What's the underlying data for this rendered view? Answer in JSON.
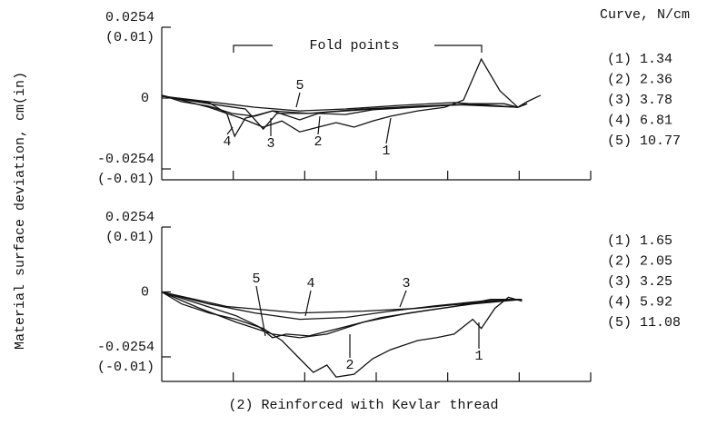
{
  "ylabel": "Material surface deviation, cm(in)",
  "legend_title": "Curve, N/cm",
  "caption": "(2) Reinforced with Kevlar thread",
  "chart_data": [
    {
      "type": "line",
      "annotation": "Fold points",
      "color": "#111111",
      "xlim": [
        0,
        6
      ],
      "xticks": [
        1,
        2,
        3,
        4,
        5,
        6
      ],
      "ylim": [
        -0.0293,
        0.0254
      ],
      "yticks": [
        {
          "value": 0.0254,
          "label": [
            "0.0254",
            "(0.01)"
          ]
        },
        0,
        {
          "value": -0.0254,
          "label": [
            "-0.0254",
            "(-0.01)"
          ]
        }
      ],
      "series": [
        {
          "name": "(1) 1.34",
          "label": "1",
          "x": [
            0,
            0.28,
            0.66,
            0.91,
            1.11,
            1.42,
            1.68,
            1.93,
            2.19,
            2.44,
            2.69,
            2.95,
            3.2,
            3.58,
            3.96,
            4.22,
            4.47,
            4.73,
            4.98,
            5.11,
            5.3
          ],
          "values": [
            0.001,
            -0.0007,
            -0.0033,
            -0.0055,
            -0.0072,
            -0.0104,
            -0.0082,
            -0.0121,
            -0.0104,
            -0.0088,
            -0.0104,
            -0.0082,
            -0.0065,
            -0.0046,
            -0.0033,
            -0.0007,
            0.014,
            0.0026,
            -0.0033,
            -0.0013,
            0.001
          ]
        },
        {
          "name": "(2) 2.36",
          "label": "2",
          "x": [
            0,
            0.28,
            0.66,
            0.98,
            1.3,
            1.55,
            1.93,
            2.19,
            2.57,
            2.95,
            3.33,
            3.84,
            4.35,
            4.79,
            4.98,
            5.11
          ],
          "values": [
            0.001,
            -0.0013,
            -0.0029,
            -0.0055,
            -0.0065,
            -0.0046,
            -0.0078,
            -0.0055,
            -0.0059,
            -0.0042,
            -0.0036,
            -0.0029,
            -0.002,
            -0.002,
            -0.0033,
            -0.002
          ]
        },
        {
          "name": "(3) 3.78",
          "label": "3",
          "x": [
            0,
            0.66,
            1.17,
            1.42,
            1.61,
            2.06,
            2.82,
            3.58,
            4.35,
            4.98,
            5.11
          ],
          "values": [
            0.0007,
            -0.002,
            -0.0039,
            -0.0111,
            -0.0055,
            -0.0055,
            -0.0039,
            -0.0029,
            -0.0023,
            -0.0033,
            -0.002
          ]
        },
        {
          "name": "(4) 6.81",
          "label": "4",
          "x": [
            0,
            0.66,
            0.91,
            1.02,
            1.17,
            1.55,
            2.06,
            2.57,
            3.33,
            4.09,
            4.98,
            5.11
          ],
          "values": [
            0.0007,
            -0.0016,
            -0.0055,
            -0.0137,
            -0.0072,
            -0.0046,
            -0.0055,
            -0.0046,
            -0.0033,
            -0.0023,
            -0.0033,
            -0.002
          ]
        },
        {
          "name": "(5) 10.77",
          "label": "5",
          "x": [
            0,
            0.66,
            1.3,
            1.93,
            2.57,
            3.33,
            4.09,
            4.98,
            5.11
          ],
          "values": [
            0.0007,
            -0.0013,
            -0.0033,
            -0.0046,
            -0.0039,
            -0.0026,
            -0.0016,
            -0.0033,
            -0.002
          ]
        }
      ]
    },
    {
      "type": "line",
      "color": "#111111",
      "xlim": [
        0,
        6
      ],
      "xticks": [
        1,
        2,
        3,
        4,
        5,
        6
      ],
      "ylim": [
        -0.035,
        0.0254
      ],
      "yticks": [
        {
          "value": 0.0254,
          "label": [
            "0.0254",
            "(0.01)"
          ]
        },
        0,
        {
          "value": -0.0254,
          "label": [
            "-0.0254",
            "(-0.01)"
          ]
        }
      ],
      "series": [
        {
          "name": "(1) 1.65",
          "label": "1",
          "x": [
            0,
            0.28,
            0.66,
            1.04,
            1.42,
            1.68,
            1.93,
            2.12,
            2.31,
            2.44,
            2.69,
            2.95,
            3.2,
            3.58,
            3.84,
            4.09,
            4.35,
            4.47,
            4.66,
            4.85,
            5.04
          ],
          "values": [
            0,
            -0.0047,
            -0.0082,
            -0.0107,
            -0.0143,
            -0.019,
            -0.0261,
            -0.0315,
            -0.0286,
            -0.0333,
            -0.0322,
            -0.0261,
            -0.0226,
            -0.019,
            -0.0179,
            -0.0165,
            -0.0107,
            -0.0143,
            -0.0064,
            -0.0021,
            -0.0036
          ]
        },
        {
          "name": "(2) 2.05",
          "label": "2",
          "x": [
            0,
            0.53,
            1.04,
            1.55,
            1.93,
            2.31,
            2.82,
            3.46,
            4.09,
            4.6,
            5.04
          ],
          "values": [
            0,
            -0.0064,
            -0.0118,
            -0.0165,
            -0.0179,
            -0.0165,
            -0.0118,
            -0.0082,
            -0.0057,
            -0.0029,
            -0.0029
          ]
        },
        {
          "name": "(3) 3.25",
          "label": "3",
          "x": [
            0,
            0.91,
            1.93,
            2.82,
            3.58,
            4.35,
            5.04
          ],
          "values": [
            0,
            -0.0057,
            -0.0082,
            -0.0075,
            -0.0064,
            -0.0043,
            -0.0029
          ]
        },
        {
          "name": "(4) 5.92",
          "label": "4",
          "x": [
            0,
            0.66,
            1.3,
            1.93,
            2.57,
            3.2,
            3.84,
            4.47,
            5.04
          ],
          "values": [
            0,
            -0.0047,
            -0.0082,
            -0.0107,
            -0.01,
            -0.0075,
            -0.0054,
            -0.0036,
            -0.0029
          ]
        },
        {
          "name": "(5) 11.08",
          "label": "5",
          "x": [
            0,
            0.53,
            1.04,
            1.36,
            1.55,
            1.74,
            2.06,
            2.57,
            3.07,
            3.71,
            4.35,
            5.04
          ],
          "values": [
            0,
            -0.0047,
            -0.0093,
            -0.0136,
            -0.0179,
            -0.0165,
            -0.0172,
            -0.0136,
            -0.01,
            -0.0072,
            -0.0047,
            -0.0029
          ]
        }
      ]
    }
  ]
}
